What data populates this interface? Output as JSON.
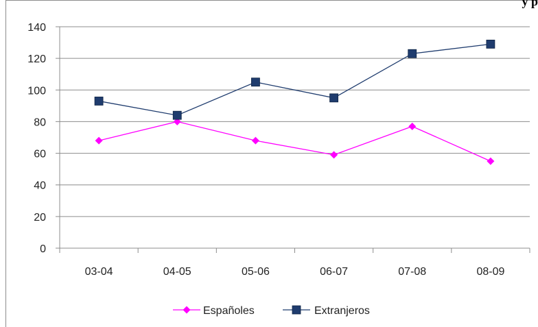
{
  "header_fragment": "y p",
  "colors": {
    "espanoles": "#ff00ff",
    "extranjeros": "#1f3c6e",
    "grid": "#8c8c8c",
    "axis": "#8c8c8c"
  },
  "chart_data": {
    "type": "line",
    "title": "",
    "xlabel": "",
    "ylabel": "",
    "categories": [
      "03-04",
      "04-05",
      "05-06",
      "06-07",
      "07-08",
      "08-09"
    ],
    "ylim": [
      0,
      140
    ],
    "yticks": [
      0,
      20,
      40,
      60,
      80,
      100,
      120,
      140
    ],
    "grid": true,
    "legend_position": "bottom",
    "series": [
      {
        "name": "Españoles",
        "marker": "diamond",
        "color": "#ff00ff",
        "values": [
          68,
          80,
          68,
          59,
          77,
          55
        ]
      },
      {
        "name": "Extranjeros",
        "marker": "square",
        "color": "#1f3c6e",
        "values": [
          93,
          84,
          105,
          95,
          123,
          129
        ]
      }
    ]
  }
}
